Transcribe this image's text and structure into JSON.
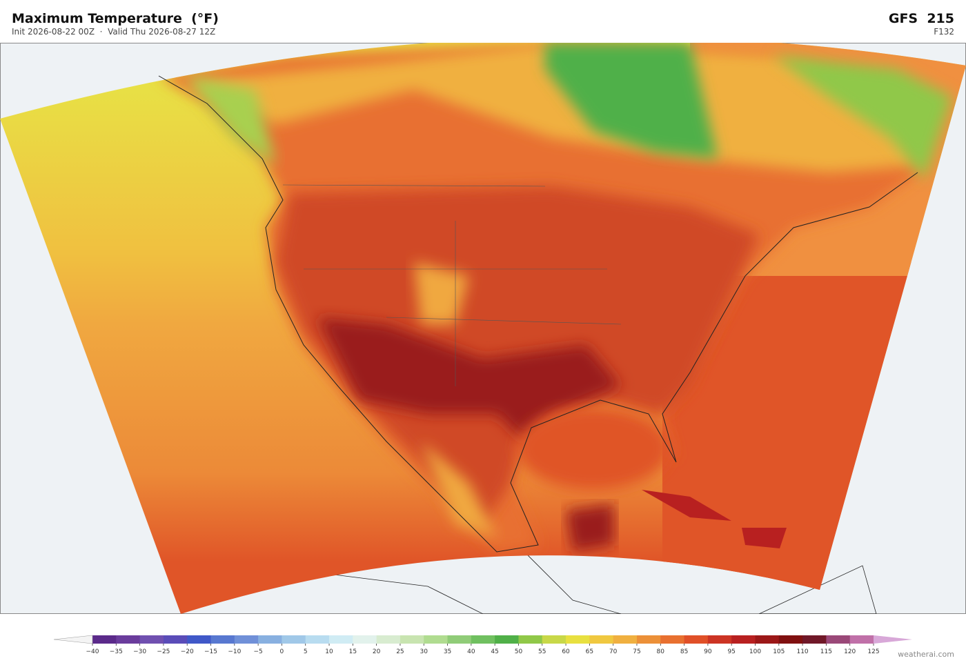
{
  "header": {
    "title": "Maximum Temperature  (°F)",
    "subtitle": "Init 2026-08-22 00Z  ·  Valid Thu 2026-08-27 12Z",
    "model": "GFS  215",
    "forecast_hour": "F132"
  },
  "colorbar": {
    "ticks": [
      {
        "value": -40,
        "label": "−40"
      },
      {
        "value": -35,
        "label": "−35"
      },
      {
        "value": -30,
        "label": "−30"
      },
      {
        "value": -25,
        "label": "−25"
      },
      {
        "value": -20,
        "label": "−20"
      },
      {
        "value": -15,
        "label": "−15"
      },
      {
        "value": -10,
        "label": "−10"
      },
      {
        "value": -5,
        "label": "−5"
      },
      0,
      5,
      10,
      15,
      20,
      25,
      30,
      35,
      40,
      45,
      50,
      55,
      60,
      65,
      70,
      75,
      80,
      85,
      90,
      95,
      100,
      105,
      110,
      115,
      120,
      125
    ],
    "colors": [
      "#5b2a8a",
      "#6a3c9c",
      "#7050b0",
      "#5a4cb8",
      "#4058c8",
      "#5878d0",
      "#7090d8",
      "#88b0e0",
      "#a0c8e8",
      "#b8dcf0",
      "#d0ecf4",
      "#e2f2ec",
      "#d8ecd0",
      "#c8e4b0",
      "#b0dc90",
      "#90cc78",
      "#70c060",
      "#50b048",
      "#90c848",
      "#c8d848",
      "#e8e040",
      "#f0c840",
      "#f0b040",
      "#ec9038",
      "#e87030",
      "#e05028",
      "#cc3424",
      "#b82020",
      "#9c1818",
      "#801010",
      "#701828",
      "#9a4878",
      "#c070a8"
    ],
    "extend_colors": [
      "#f4f4f4",
      "#d8a8d8"
    ]
  },
  "watermark": "weatherai.com"
}
